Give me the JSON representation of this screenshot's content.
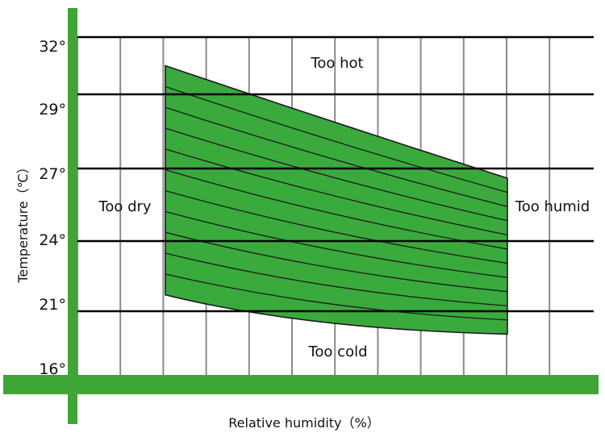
{
  "chart_data": {
    "type": "area",
    "title": "",
    "xlabel": "Relative humidity（%）",
    "ylabel": "Temperature（℃）",
    "y_ticks": [
      "32°",
      "29°",
      "27°",
      "24°",
      "21°",
      "16°"
    ],
    "x_tick_labels": [],
    "zone_labels": {
      "top": "Too hot",
      "bottom": "Too cold",
      "left": "Too dry",
      "right": "Too humid"
    },
    "comfort_zone": {
      "name": "",
      "bands": 11,
      "edge_temperatures": {
        "dry_edge": {
          "upper": 30.5,
          "lower": 21.7
        },
        "humid_edge": {
          "upper": 26.6,
          "lower": 19.2
        }
      }
    },
    "grid": true,
    "colors": {
      "axis": "#3fa535",
      "zone_fill": "#3aaa3c",
      "zone_stroke": "#1c1c1c",
      "grid_horizontal": "#000000",
      "grid_vertical": "#8a8a8a"
    }
  }
}
